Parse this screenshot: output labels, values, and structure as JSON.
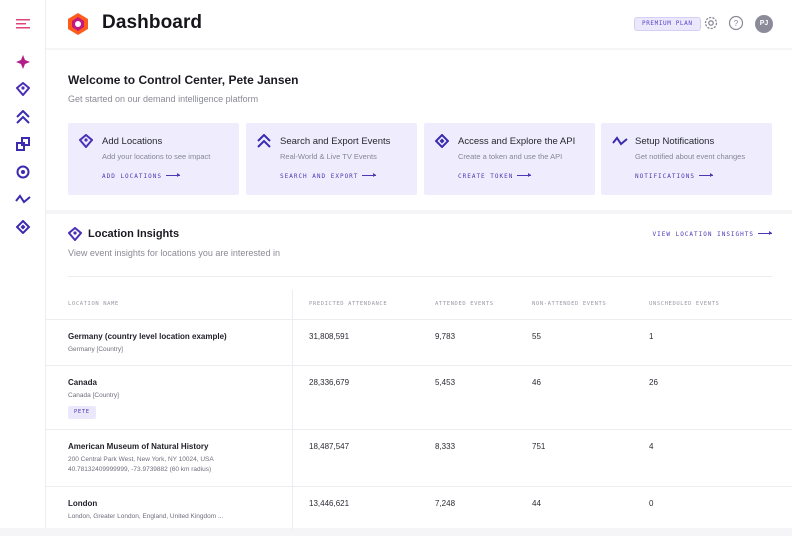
{
  "colors": {
    "accent": "#4a3ab5",
    "brand_magenta": "#c4177f",
    "brand_orange": "#ff5b1a",
    "card_bg": "#efedfd"
  },
  "sidebar": {
    "icons": [
      "menu-icon",
      "sparkle-diamond-icon",
      "location-pin-icon",
      "chevrons-up-icon",
      "export-squares-icon",
      "target-icon",
      "wave-icon",
      "api-diamond-icon"
    ]
  },
  "header": {
    "title": "Dashboard",
    "plan_badge": "PREMIUM PLAN",
    "avatar_initials": "PJ",
    "icons": [
      "settings-icon",
      "help-icon"
    ]
  },
  "welcome": {
    "heading": "Welcome to Control Center, Pete Jansen",
    "subheading": "Get started on our demand intelligence platform",
    "cards": [
      {
        "icon": "location-pin-icon",
        "title": "Add Locations",
        "desc": "Add your locations to see impact",
        "link": "ADD LOCATIONS"
      },
      {
        "icon": "chevrons-up-icon",
        "title": "Search and Export Events",
        "desc": "Real-World & Live TV Events",
        "link": "SEARCH AND EXPORT"
      },
      {
        "icon": "api-diamond-icon",
        "title": "Access and Explore the API",
        "desc": "Create a token and use the API",
        "link": "CREATE TOKEN"
      },
      {
        "icon": "wave-icon",
        "title": "Setup Notifications",
        "desc": "Get notified about event changes",
        "link": "NOTIFICATIONS"
      }
    ]
  },
  "insights": {
    "title": "Location Insights",
    "subtitle": "View event insights for locations you are interested in",
    "link": "VIEW LOCATION INSIGHTS",
    "columns": [
      "LOCATION NAME",
      "PREDICTED ATTENDANCE",
      "ATTENDED EVENTS",
      "NON-ATTENDED EVENTS",
      "UNSCHEDULED EVENTS"
    ],
    "rows": [
      {
        "name": "Germany (country level location example)",
        "sub": "Germany [Country]",
        "sub2": "",
        "tag": "",
        "predicted": "31,808,591",
        "attended": "9,783",
        "non_attended": "55",
        "unscheduled": "1"
      },
      {
        "name": "Canada",
        "sub": "Canada [Country]",
        "sub2": "",
        "tag": "PETE",
        "predicted": "28,336,679",
        "attended": "5,453",
        "non_attended": "46",
        "unscheduled": "26"
      },
      {
        "name": "American Museum of Natural History",
        "sub": "200 Central Park West, New York, NY 10024, USA",
        "sub2": "40.78132409999999, -73.9739882 (60 km radius)",
        "tag": "",
        "predicted": "18,487,547",
        "attended": "8,333",
        "non_attended": "751",
        "unscheduled": "4"
      },
      {
        "name": "London",
        "sub": "London, Greater London, England, United Kingdom ...",
        "sub2": "",
        "tag": "",
        "predicted": "13,446,621",
        "attended": "7,248",
        "non_attended": "44",
        "unscheduled": "0"
      }
    ]
  }
}
